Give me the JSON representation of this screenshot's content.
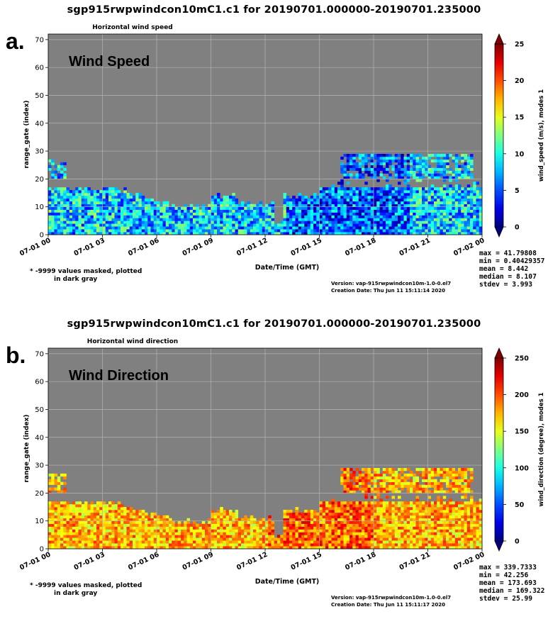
{
  "chart_data": [
    {
      "type": "heatmap",
      "panel_label": "a.",
      "title": "sgp915rwpwindcon10mC1.c1 for 20190701.000000-20190701.235000",
      "subtitle": "Horizontal wind speed",
      "overlay_label": "Wind Speed",
      "xlabel": "Date/Time (GMT)",
      "ylabel": "range_gate (index)",
      "x_tick_labels": [
        "07-01 00",
        "07-01 03",
        "07-01 06",
        "07-01 09",
        "07-01 12",
        "07-01 15",
        "07-01 18",
        "07-01 21",
        "07-02 00"
      ],
      "xlim_hours": [
        0,
        24
      ],
      "ylim": [
        0,
        72
      ],
      "y_ticks": [
        0,
        10,
        20,
        30,
        40,
        50,
        60,
        70
      ],
      "colorbar": {
        "label": "wind_speed (m/s), modes 1",
        "ticks": [
          0,
          5,
          10,
          15,
          20,
          25
        ],
        "range": [
          0,
          25
        ],
        "colormap": "jet"
      },
      "grid": true,
      "background_color": "#808080",
      "note": [
        "* -9999 values masked, plotted",
        "in dark gray"
      ],
      "version": "Version: vap-915rwpwindcon10m-1.0-0.el7",
      "creation_date": "Creation Date: Thu Jun 11 15:11:14 2020",
      "stats": [
        "max = 41.79808",
        "min = 0.40429357",
        "mean = 8.442",
        "median = 8.107",
        "stdev = 3.993"
      ],
      "mean": 8.442,
      "stdev": 3.993
    },
    {
      "type": "heatmap",
      "panel_label": "b.",
      "title": "sgp915rwpwindcon10mC1.c1 for 20190701.000000-20190701.235000",
      "subtitle": "Horizontal wind direction",
      "overlay_label": "Wind Direction",
      "xlabel": "Date/Time (GMT)",
      "ylabel": "range_gate (index)",
      "x_tick_labels": [
        "07-01 00",
        "07-01 03",
        "07-01 06",
        "07-01 09",
        "07-01 12",
        "07-01 15",
        "07-01 18",
        "07-01 21",
        "07-02 00"
      ],
      "xlim_hours": [
        0,
        24
      ],
      "ylim": [
        0,
        72
      ],
      "y_ticks": [
        0,
        10,
        20,
        30,
        40,
        50,
        60,
        70
      ],
      "colorbar": {
        "label": "wind_direction (degree), modes 1",
        "ticks": [
          0,
          50,
          100,
          150,
          200,
          250
        ],
        "range": [
          0,
          250
        ],
        "colormap": "jet"
      },
      "grid": true,
      "background_color": "#808080",
      "note": [
        "* -9999 values masked, plotted",
        "in dark gray"
      ],
      "version": "Version: vap-915rwpwindcon10m-1.0-0.el7",
      "creation_date": "Creation Date: Thu Jun 11 15:11:17 2020",
      "stats": [
        "max = 339.7333",
        "min = 42.256",
        "mean = 173.693",
        "median = 169.322",
        "stdev = 25.99"
      ],
      "mean": 173.693,
      "stdev": 25.99
    }
  ]
}
